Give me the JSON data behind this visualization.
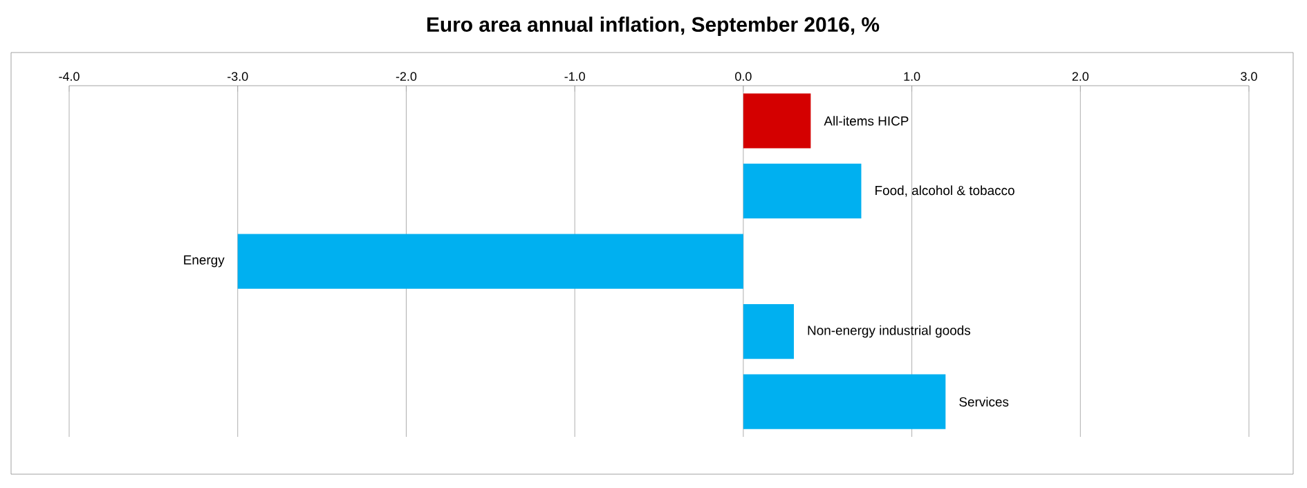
{
  "chart_data": {
    "type": "bar",
    "orientation": "horizontal",
    "title": "Euro area annual inflation, September 2016, %",
    "categories": [
      "All-items HICP",
      "Food, alcohol & tobacco",
      "Energy",
      "Non-energy industrial goods",
      "Services"
    ],
    "values": [
      0.4,
      0.7,
      -3.0,
      0.3,
      1.2
    ],
    "colors": [
      "#d40000",
      "#00b0f0",
      "#00b0f0",
      "#00b0f0",
      "#00b0f0"
    ],
    "xlim": [
      -4,
      3
    ],
    "xticks": [
      {
        "value": -4,
        "label": "-4.0"
      },
      {
        "value": -3,
        "label": "-3.0"
      },
      {
        "value": -2,
        "label": "-2.0"
      },
      {
        "value": -1,
        "label": "-1.0"
      },
      {
        "value": 0,
        "label": "0.0"
      },
      {
        "value": 1,
        "label": "1.0"
      },
      {
        "value": 2,
        "label": "2.0"
      },
      {
        "value": 3,
        "label": "3.0"
      }
    ],
    "grid": "x",
    "tick_labels": "x"
  }
}
